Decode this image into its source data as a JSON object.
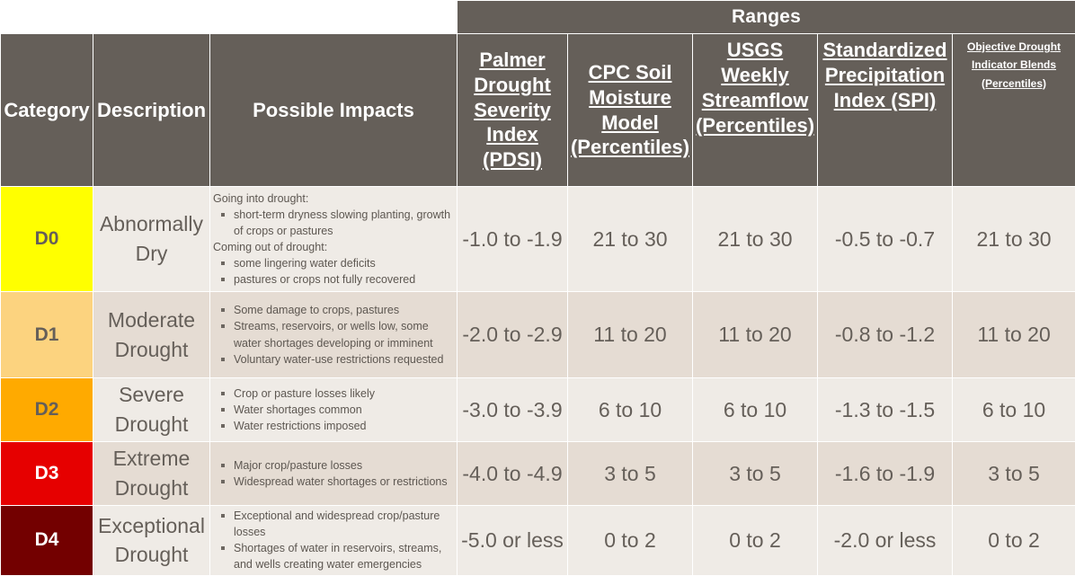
{
  "header": {
    "ranges": "Ranges",
    "category": "Category",
    "description": "Description",
    "impacts": "Possible Impacts",
    "pdsi": "Palmer Drought Severity Index (PDSI)",
    "cpc": "CPC Soil Moisture Model (Percentiles)",
    "usgs": "USGS Weekly Streamflow (Percentiles)",
    "spi": "Standardized Precipitation Index (SPI)",
    "blends": "Objective Drought Indicator Blends (Percentiles)"
  },
  "colors": {
    "header_bg": "#655f59",
    "row_light": "#efebe6",
    "row_dark": "#e5dcd3",
    "D0": "#ffff00",
    "D1": "#fcd37f",
    "D2": "#ffaa00",
    "D3": "#e60000",
    "D4": "#730000"
  },
  "rows": [
    {
      "category": "D0",
      "description": "Abnormally Dry",
      "impacts_into_label": "Going into drought:",
      "impacts_into": [
        "short-term dryness slowing planting, growth of crops or pastures"
      ],
      "impacts_out_label": "Coming out of drought:",
      "impacts_out": [
        "some lingering water deficits",
        "pastures or crops not fully recovered"
      ],
      "pdsi": "-1.0 to -1.9",
      "cpc": "21 to 30",
      "usgs": "21 to 30",
      "spi": "-0.5 to -0.7",
      "blends": "21 to 30"
    },
    {
      "category": "D1",
      "description": "Moderate Drought",
      "impacts": [
        "Some damage to crops, pastures",
        "Streams, reservoirs, or wells low, some water shortages developing or imminent",
        "Voluntary water-use restrictions requested"
      ],
      "pdsi": "-2.0 to -2.9",
      "cpc": "11 to 20",
      "usgs": "11 to 20",
      "spi": "-0.8 to -1.2",
      "blends": "11 to 20"
    },
    {
      "category": "D2",
      "description": "Severe Drought",
      "impacts": [
        "Crop or pasture losses likely",
        "Water shortages common",
        "Water restrictions imposed"
      ],
      "pdsi": "-3.0 to -3.9",
      "cpc": "6 to 10",
      "usgs": "6 to 10",
      "spi": "-1.3 to -1.5",
      "blends": "6 to 10"
    },
    {
      "category": "D3",
      "description": "Extreme Drought",
      "impacts": [
        "Major crop/pasture losses",
        "Widespread water shortages or restrictions"
      ],
      "pdsi": "-4.0 to -4.9",
      "cpc": "3 to 5",
      "usgs": "3 to 5",
      "spi": "-1.6 to -1.9",
      "blends": "3 to 5"
    },
    {
      "category": "D4",
      "description": "Exceptional Drought",
      "impacts": [
        "Exceptional and widespread crop/pasture losses",
        "Shortages of water in reservoirs, streams, and wells creating water emergencies"
      ],
      "pdsi": "-5.0 or less",
      "cpc": "0 to 2",
      "usgs": "0 to 2",
      "spi": "-2.0 or less",
      "blends": "0 to 2"
    }
  ]
}
